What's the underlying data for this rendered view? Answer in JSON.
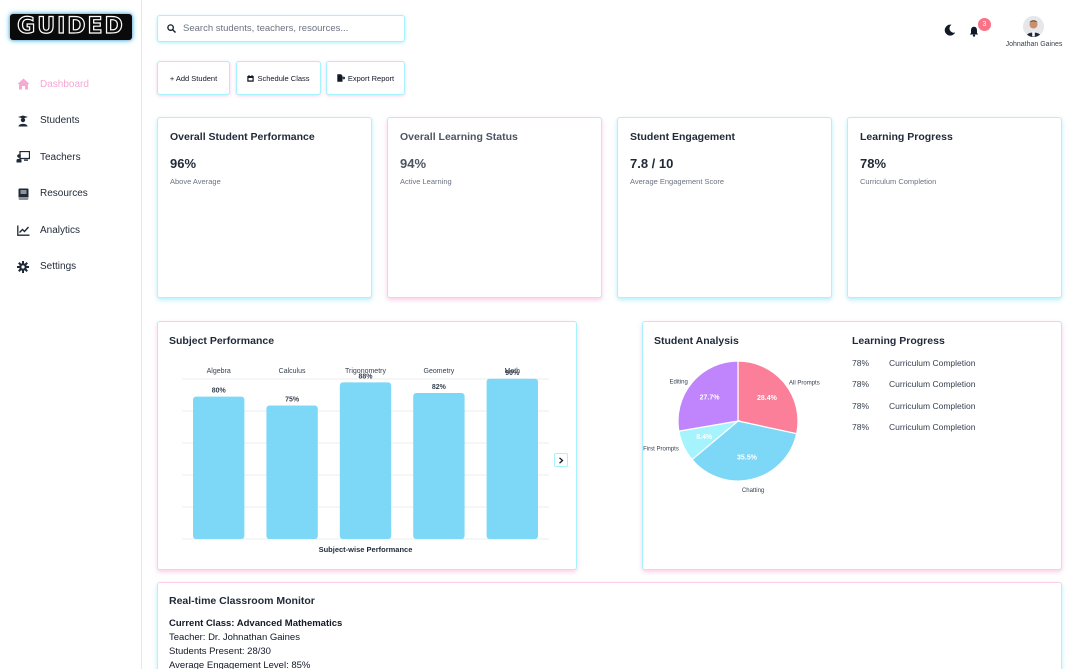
{
  "brand": {
    "logo_text": "GUIDED"
  },
  "sidebar": {
    "items": [
      {
        "label": "Dashboard",
        "icon": "home-icon",
        "active": true
      },
      {
        "label": "Students",
        "icon": "graduation-cap-icon"
      },
      {
        "label": "Teachers",
        "icon": "chalkboard-teacher-icon"
      },
      {
        "label": "Resources",
        "icon": "book-icon"
      },
      {
        "label": "Analytics",
        "icon": "chart-line-icon"
      },
      {
        "label": "Settings",
        "icon": "gear-icon"
      }
    ]
  },
  "search": {
    "placeholder": "Search students, teachers, resources..."
  },
  "header": {
    "notification_count": "3",
    "user_name": "Johnathan Gaines"
  },
  "actions": {
    "add_student": "+ Add Student",
    "schedule_class": "Schedule Class",
    "export_report": "Export Report"
  },
  "stats": [
    {
      "title": "Overall Student Performance",
      "value": "96%",
      "sub": "Above Average"
    },
    {
      "title": "Overall Learning Status",
      "value": "94%",
      "sub": "Active Learning"
    },
    {
      "title": "Student Engagement",
      "value": "7.8 / 10",
      "sub": "Average Engagement Score"
    },
    {
      "title": "Learning Progress",
      "value": "78%",
      "sub": "Curriculum Completion"
    }
  ],
  "subject_performance": {
    "title": "Subject Performance"
  },
  "student_analysis": {
    "title": "Student Analysis"
  },
  "learning_progress": {
    "title": "Learning Progress",
    "rows": [
      {
        "pct": "78%",
        "label": "Curriculum Completion"
      },
      {
        "pct": "78%",
        "label": "Curriculum Completion"
      },
      {
        "pct": "78%",
        "label": "Curriculum Completion"
      },
      {
        "pct": "78%",
        "label": "Curriculum Completion"
      }
    ]
  },
  "monitor": {
    "title": "Real-time Classroom Monitor",
    "current_class": "Current Class: Advanced Mathematics",
    "teacher": "Teacher: Dr. Johnathan Gaines",
    "present": "Students Present: 28/30",
    "engagement": "Average Engagement Level: 85%"
  },
  "colors": {
    "cyan": "#7dd8f7",
    "pink": "#f9a8d4",
    "purple": "#c084fc",
    "rose": "#fb7f98",
    "light_cyan": "#a5f3fc"
  },
  "chart_data": [
    {
      "type": "bar",
      "title": "",
      "xlabel": "Subject-wise Performance",
      "ylabel": "",
      "categories": [
        "Algebra",
        "Calculus",
        "Trigonometry",
        "Geometry",
        "Math"
      ],
      "values": [
        80,
        75,
        88,
        82,
        90
      ],
      "value_labels": [
        "80%",
        "75%",
        "88%",
        "82%",
        "90%"
      ],
      "ylim": [
        0,
        100
      ],
      "category_labels_position": "top",
      "grid": true,
      "color": "#7dd8f7"
    },
    {
      "type": "pie",
      "title": "",
      "slices": [
        {
          "label": "All Prompts",
          "value": 28.4,
          "display": "28.4%",
          "color": "#fb7f98"
        },
        {
          "label": "Chatting",
          "value": 35.5,
          "display": "35.5%",
          "color": "#7dd8f7"
        },
        {
          "label": "First Prompts",
          "value": 8.4,
          "display": "8.4%",
          "color": "#a5f3fc"
        },
        {
          "label": "Editing",
          "value": 27.7,
          "display": "27.7%",
          "color": "#c084fc"
        }
      ]
    }
  ]
}
